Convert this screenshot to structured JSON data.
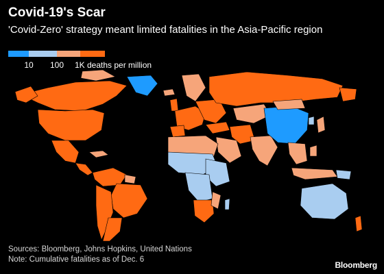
{
  "header": {
    "title": "Covid-19's Scar",
    "subtitle": "'Covid-Zero' strategy meant limited fatalities in the Asia-Pacific region"
  },
  "legend": {
    "colors": [
      "#1e9bff",
      "#a9cdf0",
      "#f6a57a",
      "#ff6a13"
    ],
    "ticks": [
      "10",
      "100",
      "1K deaths per million"
    ]
  },
  "map": {
    "colors": {
      "ocean": "#000000",
      "lowest": "#1e9bff",
      "low": "#a9cdf0",
      "high": "#f6a57a",
      "highest": "#ff6a13"
    }
  },
  "footer": {
    "sources": "Sources: Bloomberg, Johns Hopkins, United Nations",
    "note": "Note: Cumulative fatalities as of Dec. 6",
    "brand": "Bloomberg"
  }
}
